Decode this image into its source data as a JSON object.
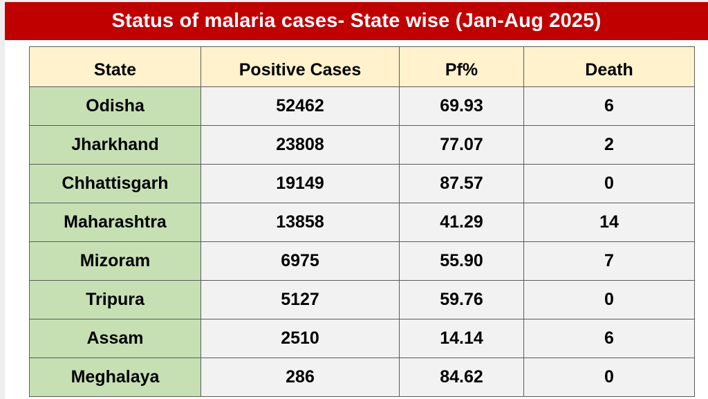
{
  "title": "Status of malaria cases- State wise (Jan-Aug 2025)",
  "colors": {
    "banner": "#c00000",
    "header": "#fff2cc",
    "state_cell": "#c6e0b4",
    "cell": "#f2f2f2"
  },
  "table": {
    "headers": [
      "State",
      "Positive Cases",
      "Pf%",
      "Death"
    ],
    "rows": [
      [
        "Odisha",
        "52462",
        "69.93",
        "6"
      ],
      [
        "Jharkhand",
        "23808",
        "77.07",
        "2"
      ],
      [
        "Chhattisgarh",
        "19149",
        "87.57",
        "0"
      ],
      [
        "Maharashtra",
        "13858",
        "41.29",
        "14"
      ],
      [
        "Mizoram",
        "6975",
        "55.90",
        "7"
      ],
      [
        "Tripura",
        "5127",
        "59.76",
        "0"
      ],
      [
        "Assam",
        "2510",
        "14.14",
        "6"
      ],
      [
        "Meghalaya",
        "286",
        "84.62",
        "0"
      ]
    ]
  }
}
